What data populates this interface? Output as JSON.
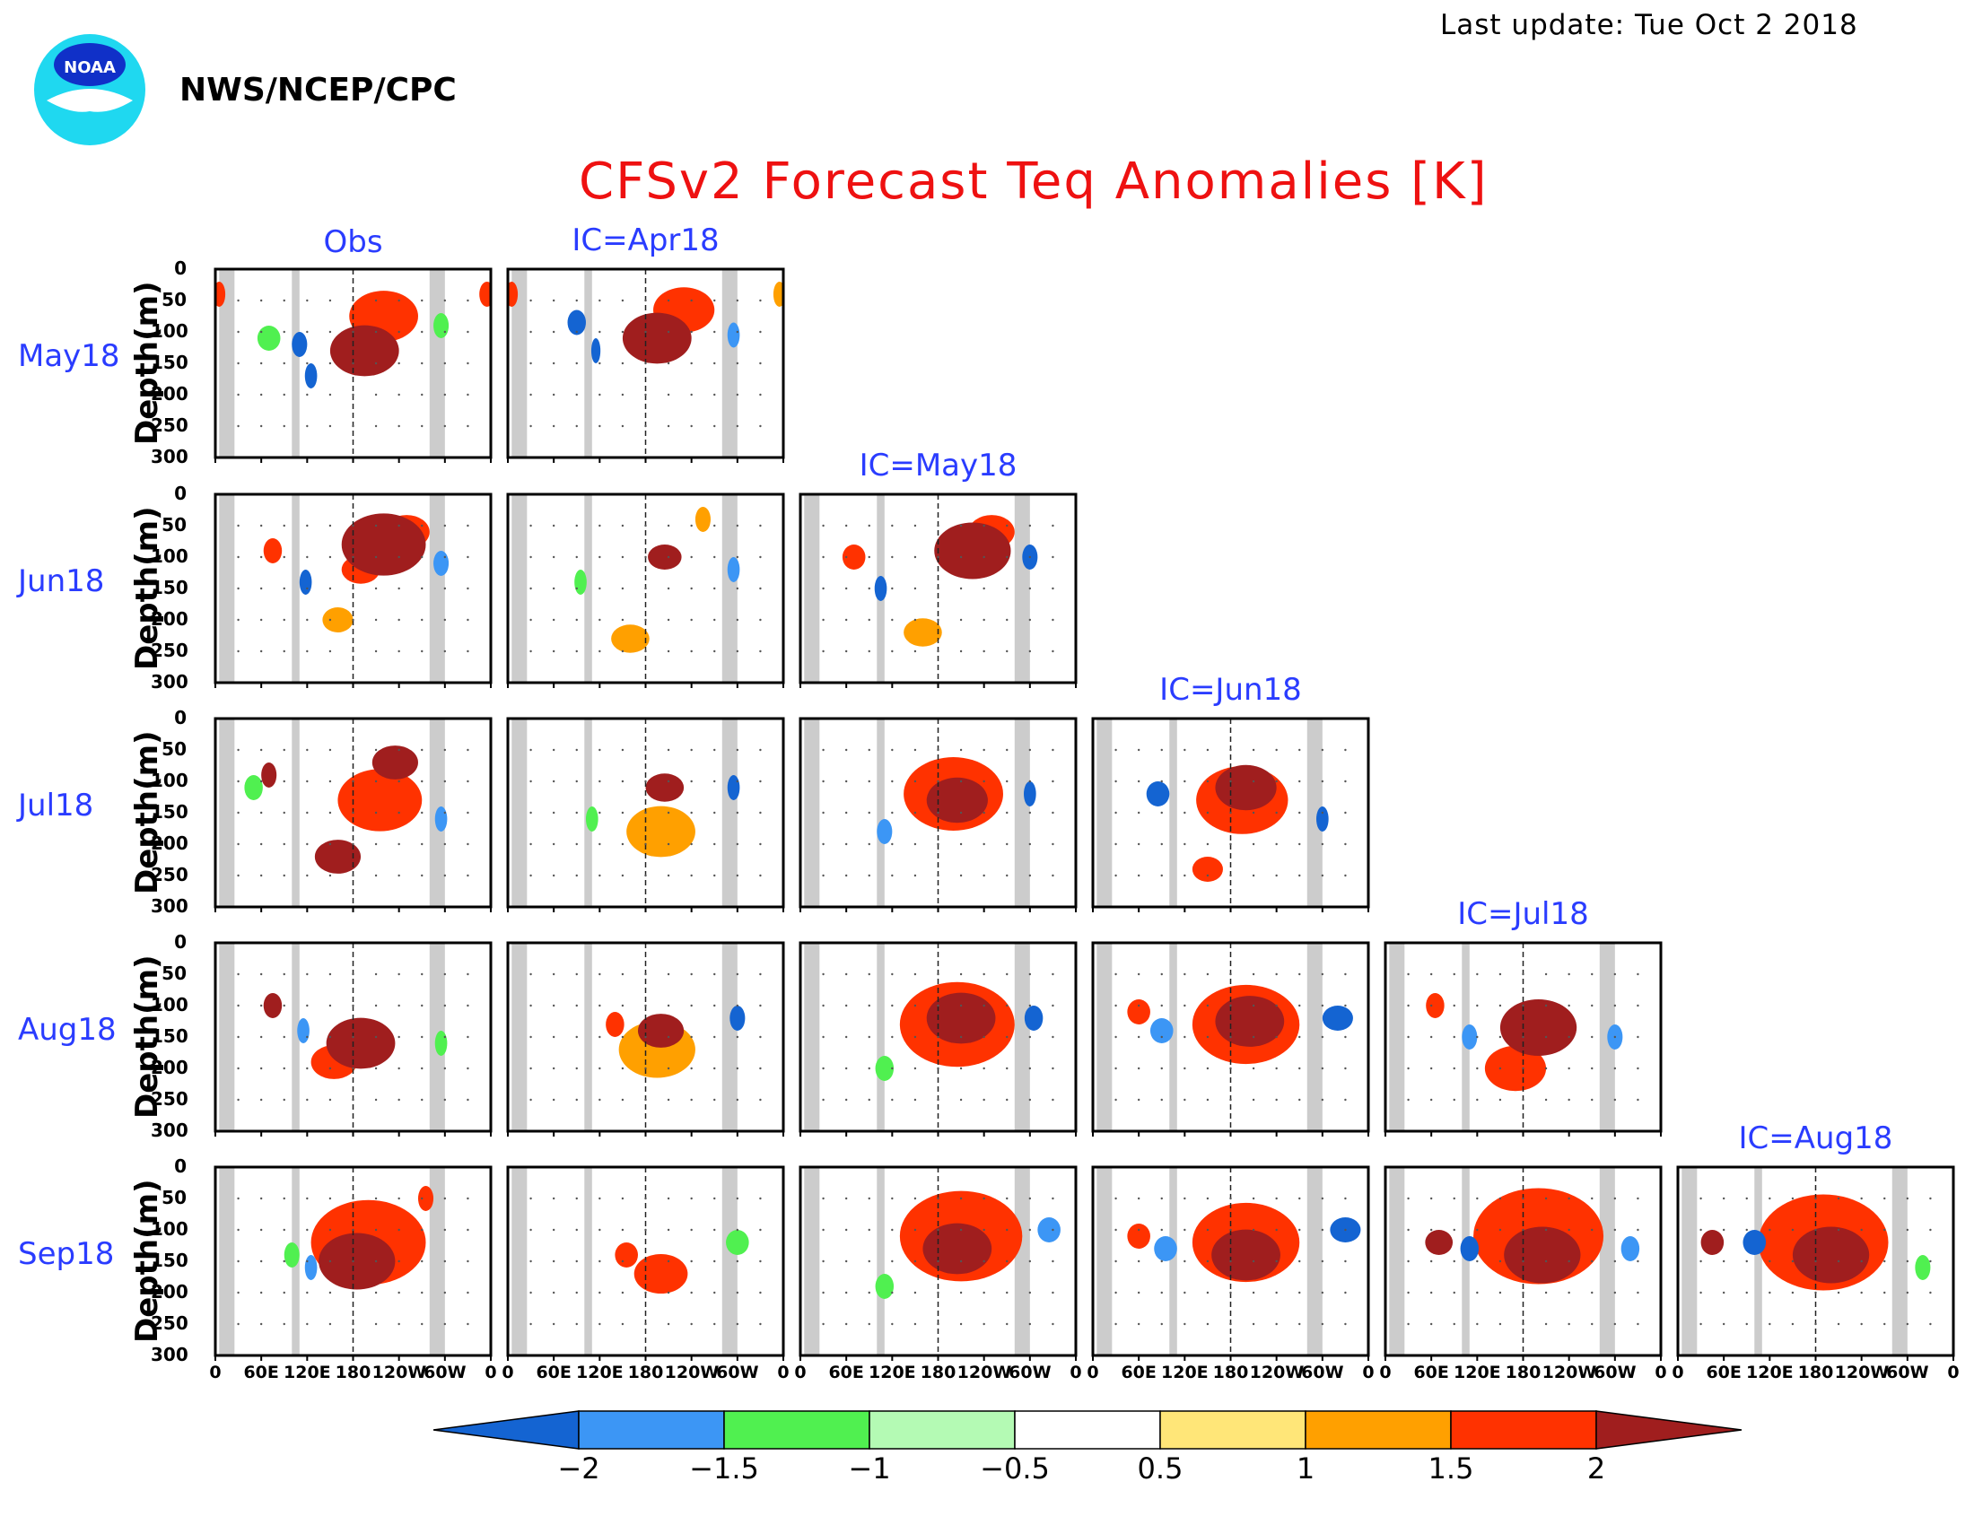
{
  "header": {
    "last_update": "Last update: Tue Oct 2 2018",
    "agency": "NWS/NCEP/CPC",
    "logo_text": "NOAA",
    "title": "CFSv2 Forecast Teq Anomalies [K]"
  },
  "chart_data": {
    "type": "heatmap",
    "title": "CFSv2 Forecast Teq Anomalies [K]",
    "column_titles": [
      "Obs",
      "IC=Apr18",
      "IC=May18",
      "IC=Jun18",
      "IC=Jul18",
      "IC=Aug18"
    ],
    "row_labels": [
      "May18",
      "Jun18",
      "Jul18",
      "Aug18",
      "Sep18"
    ],
    "ylabel": "Depth(m)",
    "yticks": [
      "0",
      "50",
      "100",
      "150",
      "200",
      "250",
      "300"
    ],
    "ylim": [
      0,
      300
    ],
    "xticks": [
      "0",
      "60E",
      "120E",
      "180",
      "120W",
      "60W",
      "0"
    ],
    "colorbar": {
      "ticks": [
        "−2",
        "−1.5",
        "−1",
        "−0.5",
        "0.5",
        "1",
        "1.5",
        "2"
      ],
      "colors": [
        "#1464d2",
        "#3c96f5",
        "#50f050",
        "#b4fab4",
        "#ffffff",
        "#ffe678",
        "#ffa000",
        "#ff3200",
        "#a01e1e"
      ]
    },
    "panels": [
      {
        "row": "May18",
        "col": "Obs",
        "features": [
          {
            "lon": 195,
            "depth": 130,
            "width": 45,
            "anom": 2.0
          },
          {
            "lon": 220,
            "depth": 75,
            "width": 45,
            "anom": 1.5
          },
          {
            "lon": 110,
            "depth": 120,
            "width": 10,
            "anom": -2.0
          },
          {
            "lon": 125,
            "depth": 170,
            "width": 8,
            "anom": -2.0
          },
          {
            "lon": 70,
            "depth": 110,
            "width": 15,
            "anom": -1.0
          },
          {
            "lon": 295,
            "depth": 90,
            "width": 10,
            "anom": -1.0
          },
          {
            "lon": 5,
            "depth": 40,
            "width": 8,
            "anom": 1.5
          },
          {
            "lon": 355,
            "depth": 40,
            "width": 10,
            "anom": 1.5
          }
        ]
      },
      {
        "row": "May18",
        "col": "IC=Apr18",
        "features": [
          {
            "lon": 195,
            "depth": 110,
            "width": 45,
            "anom": 2.0
          },
          {
            "lon": 230,
            "depth": 65,
            "width": 40,
            "anom": 1.5
          },
          {
            "lon": 90,
            "depth": 85,
            "width": 12,
            "anom": -2.0
          },
          {
            "lon": 115,
            "depth": 130,
            "width": 6,
            "anom": -2.0
          },
          {
            "lon": 295,
            "depth": 105,
            "width": 8,
            "anom": -1.5
          },
          {
            "lon": 5,
            "depth": 40,
            "width": 8,
            "anom": 1.5
          },
          {
            "lon": 355,
            "depth": 40,
            "width": 8,
            "anom": 1.0
          }
        ]
      },
      {
        "row": "Jun18",
        "col": "Obs",
        "features": [
          {
            "lon": 220,
            "depth": 80,
            "width": 55,
            "anom": 2.0
          },
          {
            "lon": 190,
            "depth": 120,
            "width": 25,
            "anom": 1.5
          },
          {
            "lon": 250,
            "depth": 60,
            "width": 30,
            "anom": 1.5
          },
          {
            "lon": 118,
            "depth": 140,
            "width": 8,
            "anom": -2.0
          },
          {
            "lon": 295,
            "depth": 110,
            "width": 10,
            "anom": -1.5
          },
          {
            "lon": 75,
            "depth": 90,
            "width": 12,
            "anom": 1.5
          },
          {
            "lon": 160,
            "depth": 200,
            "width": 20,
            "anom": 1.0
          }
        ]
      },
      {
        "row": "Jun18",
        "col": "IC=Apr18",
        "features": [
          {
            "lon": 205,
            "depth": 100,
            "width": 22,
            "anom": 2.0
          },
          {
            "lon": 295,
            "depth": 120,
            "width": 8,
            "anom": -1.5
          },
          {
            "lon": 95,
            "depth": 140,
            "width": 8,
            "anom": -1.0
          },
          {
            "lon": 160,
            "depth": 230,
            "width": 25,
            "anom": 1.0
          },
          {
            "lon": 255,
            "depth": 40,
            "width": 10,
            "anom": 1.0
          }
        ]
      },
      {
        "row": "Jun18",
        "col": "IC=May18",
        "features": [
          {
            "lon": 225,
            "depth": 90,
            "width": 50,
            "anom": 2.0
          },
          {
            "lon": 250,
            "depth": 60,
            "width": 30,
            "anom": 1.5
          },
          {
            "lon": 105,
            "depth": 150,
            "width": 8,
            "anom": -2.0
          },
          {
            "lon": 300,
            "depth": 100,
            "width": 10,
            "anom": -2.0
          },
          {
            "lon": 70,
            "depth": 100,
            "width": 15,
            "anom": 1.5
          },
          {
            "lon": 160,
            "depth": 220,
            "width": 25,
            "anom": 1.0
          }
        ]
      },
      {
        "row": "Jul18",
        "col": "Obs",
        "features": [
          {
            "lon": 215,
            "depth": 130,
            "width": 55,
            "anom": 1.5
          },
          {
            "lon": 160,
            "depth": 220,
            "width": 30,
            "anom": 2.0
          },
          {
            "lon": 235,
            "depth": 70,
            "width": 30,
            "anom": 2.0
          },
          {
            "lon": 70,
            "depth": 90,
            "width": 10,
            "anom": 2.0
          },
          {
            "lon": 295,
            "depth": 160,
            "width": 8,
            "anom": -1.5
          },
          {
            "lon": 50,
            "depth": 110,
            "width": 12,
            "anom": -1.0
          }
        ]
      },
      {
        "row": "Jul18",
        "col": "IC=Apr18",
        "features": [
          {
            "lon": 205,
            "depth": 110,
            "width": 25,
            "anom": 2.0
          },
          {
            "lon": 200,
            "depth": 180,
            "width": 45,
            "anom": 1.0
          },
          {
            "lon": 295,
            "depth": 110,
            "width": 8,
            "anom": -2.0
          },
          {
            "lon": 110,
            "depth": 160,
            "width": 8,
            "anom": -1.0
          }
        ]
      },
      {
        "row": "Jul18",
        "col": "IC=May18",
        "features": [
          {
            "lon": 205,
            "depth": 130,
            "width": 40,
            "anom": 2.0
          },
          {
            "lon": 200,
            "depth": 120,
            "width": 65,
            "anom": 1.5
          },
          {
            "lon": 300,
            "depth": 120,
            "width": 8,
            "anom": -2.0
          },
          {
            "lon": 110,
            "depth": 180,
            "width": 10,
            "anom": -1.5
          }
        ]
      },
      {
        "row": "Jul18",
        "col": "IC=Jun18",
        "features": [
          {
            "lon": 200,
            "depth": 110,
            "width": 40,
            "anom": 2.0
          },
          {
            "lon": 195,
            "depth": 130,
            "width": 60,
            "anom": 1.5
          },
          {
            "lon": 85,
            "depth": 120,
            "width": 15,
            "anom": -2.0
          },
          {
            "lon": 300,
            "depth": 160,
            "width": 8,
            "anom": -2.0
          },
          {
            "lon": 150,
            "depth": 240,
            "width": 20,
            "anom": 1.5
          }
        ]
      },
      {
        "row": "Aug18",
        "col": "Obs",
        "features": [
          {
            "lon": 190,
            "depth": 160,
            "width": 45,
            "anom": 2.0
          },
          {
            "lon": 155,
            "depth": 190,
            "width": 30,
            "anom": 1.5
          },
          {
            "lon": 75,
            "depth": 100,
            "width": 12,
            "anom": 2.0
          },
          {
            "lon": 295,
            "depth": 160,
            "width": 8,
            "anom": -1.0
          },
          {
            "lon": 115,
            "depth": 140,
            "width": 8,
            "anom": -1.5
          }
        ]
      },
      {
        "row": "Aug18",
        "col": "IC=Apr18",
        "features": [
          {
            "lon": 200,
            "depth": 140,
            "width": 30,
            "anom": 2.0
          },
          {
            "lon": 195,
            "depth": 170,
            "width": 50,
            "anom": 1.0
          },
          {
            "lon": 140,
            "depth": 130,
            "width": 12,
            "anom": 1.5
          },
          {
            "lon": 300,
            "depth": 120,
            "width": 10,
            "anom": -2.0
          }
        ]
      },
      {
        "row": "Aug18",
        "col": "IC=May18",
        "features": [
          {
            "lon": 210,
            "depth": 120,
            "width": 45,
            "anom": 2.0
          },
          {
            "lon": 205,
            "depth": 130,
            "width": 75,
            "anom": 1.5
          },
          {
            "lon": 305,
            "depth": 120,
            "width": 12,
            "anom": -2.0
          },
          {
            "lon": 110,
            "depth": 200,
            "width": 12,
            "anom": -1.0
          }
        ]
      },
      {
        "row": "Aug18",
        "col": "IC=Jun18",
        "features": [
          {
            "lon": 205,
            "depth": 125,
            "width": 45,
            "anom": 2.0
          },
          {
            "lon": 200,
            "depth": 130,
            "width": 70,
            "anom": 1.5
          },
          {
            "lon": 320,
            "depth": 120,
            "width": 20,
            "anom": -2.0
          },
          {
            "lon": 90,
            "depth": 140,
            "width": 15,
            "anom": -1.5
          },
          {
            "lon": 60,
            "depth": 110,
            "width": 15,
            "anom": 1.5
          }
        ]
      },
      {
        "row": "Aug18",
        "col": "IC=Jul18",
        "features": [
          {
            "lon": 200,
            "depth": 135,
            "width": 50,
            "anom": 2.0
          },
          {
            "lon": 170,
            "depth": 200,
            "width": 40,
            "anom": 1.5
          },
          {
            "lon": 65,
            "depth": 100,
            "width": 12,
            "anom": 1.5
          },
          {
            "lon": 110,
            "depth": 150,
            "width": 10,
            "anom": -1.5
          },
          {
            "lon": 300,
            "depth": 150,
            "width": 10,
            "anom": -1.5
          }
        ]
      },
      {
        "row": "Sep18",
        "col": "Obs",
        "features": [
          {
            "lon": 185,
            "depth": 150,
            "width": 50,
            "anom": 2.0
          },
          {
            "lon": 200,
            "depth": 120,
            "width": 75,
            "anom": 1.5
          },
          {
            "lon": 100,
            "depth": 140,
            "width": 10,
            "anom": -1.0
          },
          {
            "lon": 125,
            "depth": 160,
            "width": 8,
            "anom": -1.5
          },
          {
            "lon": 275,
            "depth": 50,
            "width": 10,
            "anom": 1.5
          }
        ]
      },
      {
        "row": "Sep18",
        "col": "IC=Apr18",
        "features": [
          {
            "lon": 200,
            "depth": 170,
            "width": 35,
            "anom": 1.5
          },
          {
            "lon": 155,
            "depth": 140,
            "width": 15,
            "anom": 1.5
          },
          {
            "lon": 300,
            "depth": 120,
            "width": 15,
            "anom": -1.0
          }
        ]
      },
      {
        "row": "Sep18",
        "col": "IC=May18",
        "features": [
          {
            "lon": 205,
            "depth": 130,
            "width": 45,
            "anom": 2.0
          },
          {
            "lon": 210,
            "depth": 110,
            "width": 80,
            "anom": 1.5
          },
          {
            "lon": 325,
            "depth": 100,
            "width": 15,
            "anom": -1.5
          },
          {
            "lon": 110,
            "depth": 190,
            "width": 12,
            "anom": -1.0
          }
        ]
      },
      {
        "row": "Sep18",
        "col": "IC=Jun18",
        "features": [
          {
            "lon": 200,
            "depth": 140,
            "width": 45,
            "anom": 2.0
          },
          {
            "lon": 200,
            "depth": 120,
            "width": 70,
            "anom": 1.5
          },
          {
            "lon": 330,
            "depth": 100,
            "width": 20,
            "anom": -2.0
          },
          {
            "lon": 95,
            "depth": 130,
            "width": 15,
            "anom": -1.5
          },
          {
            "lon": 60,
            "depth": 110,
            "width": 15,
            "anom": 1.5
          }
        ]
      },
      {
        "row": "Sep18",
        "col": "IC=Jul18",
        "features": [
          {
            "lon": 205,
            "depth": 140,
            "width": 50,
            "anom": 2.0
          },
          {
            "lon": 200,
            "depth": 110,
            "width": 85,
            "anom": 1.5
          },
          {
            "lon": 70,
            "depth": 120,
            "width": 18,
            "anom": 2.0
          },
          {
            "lon": 110,
            "depth": 130,
            "width": 12,
            "anom": -2.0
          },
          {
            "lon": 320,
            "depth": 130,
            "width": 12,
            "anom": -1.5
          }
        ]
      },
      {
        "row": "Sep18",
        "col": "IC=Aug18",
        "features": [
          {
            "lon": 200,
            "depth": 140,
            "width": 50,
            "anom": 2.0
          },
          {
            "lon": 190,
            "depth": 120,
            "width": 85,
            "anom": 1.5
          },
          {
            "lon": 45,
            "depth": 120,
            "width": 15,
            "anom": 2.0
          },
          {
            "lon": 100,
            "depth": 120,
            "width": 15,
            "anom": -2.0
          },
          {
            "lon": 320,
            "depth": 160,
            "width": 10,
            "anom": -1.0
          }
        ]
      }
    ]
  }
}
